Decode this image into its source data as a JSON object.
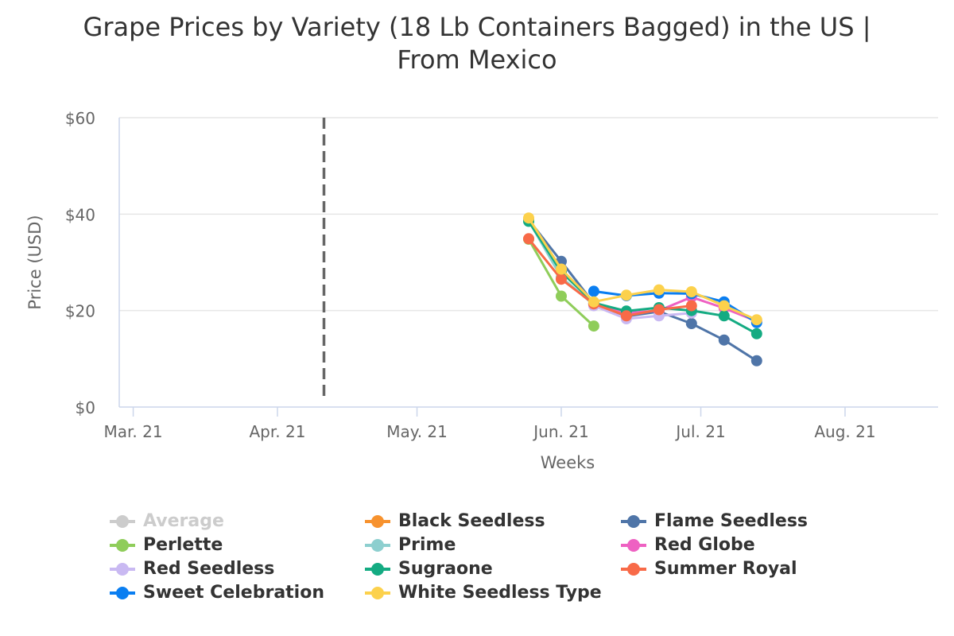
{
  "chart_data": {
    "type": "line",
    "title_lines": [
      "Grape Prices by Variety (18 Lb Containers Bagged) in the US |",
      "From Mexico"
    ],
    "xlabel": "Weeks",
    "ylabel": "Price (USD)",
    "x_tick_labels": [
      "Mar. 21",
      "Apr. 21",
      "May. 21",
      "Jun. 21",
      "Jul. 21",
      "Aug. 21"
    ],
    "x_tick_dates": [
      "2021-03-01",
      "2021-04-01",
      "2021-05-01",
      "2021-06-01",
      "2021-07-01",
      "2021-08-01"
    ],
    "xlim": [
      "2021-02-26",
      "2021-08-21"
    ],
    "y_tick_labels": [
      "$0",
      "$20",
      "$40",
      "$60"
    ],
    "y_tick_values": [
      0,
      20,
      40,
      60
    ],
    "ylim": [
      0,
      60
    ],
    "grid": "horizontal",
    "legend_position": "bottom",
    "plot_line": {
      "date": "2021-04-11",
      "style": "dashed",
      "color": "#666666"
    },
    "series": [
      {
        "name": "Average",
        "color": "#cccccc",
        "hidden": true,
        "points": []
      },
      {
        "name": "Black Seedless",
        "color": "#f7922e",
        "points": []
      },
      {
        "name": "Flame Seedless",
        "color": "#4f75a8",
        "points": [
          [
            "2021-05-25",
            38.8
          ],
          [
            "2021-06-01",
            30.2
          ],
          [
            "2021-06-08",
            21.5
          ],
          [
            "2021-06-15",
            18.8
          ],
          [
            "2021-06-22",
            19.8
          ],
          [
            "2021-06-29",
            17.3
          ],
          [
            "2021-07-06",
            13.9
          ],
          [
            "2021-07-13",
            9.6
          ]
        ]
      },
      {
        "name": "Perlette",
        "color": "#8fcd5a",
        "points": [
          [
            "2021-05-25",
            34.8
          ],
          [
            "2021-06-01",
            23.0
          ],
          [
            "2021-06-08",
            16.8
          ]
        ]
      },
      {
        "name": "Prime",
        "color": "#8dcfcf",
        "points": [
          [
            "2021-05-25",
            38.6
          ],
          [
            "2021-06-01",
            26.9
          ],
          [
            "2021-06-08",
            21.2
          ]
        ]
      },
      {
        "name": "Red Globe",
        "color": "#ee61c2",
        "points": [
          [
            "2021-06-08",
            21.3
          ],
          [
            "2021-06-15",
            19.5
          ],
          [
            "2021-06-22",
            20.0
          ],
          [
            "2021-06-29",
            22.8
          ],
          [
            "2021-07-06",
            20.5
          ],
          [
            "2021-07-13",
            17.8
          ]
        ]
      },
      {
        "name": "Red Seedless",
        "color": "#c9b9f2",
        "points": [
          [
            "2021-06-08",
            21.0
          ],
          [
            "2021-06-15",
            18.3
          ],
          [
            "2021-06-22",
            18.9
          ],
          [
            "2021-06-29",
            19.5
          ]
        ]
      },
      {
        "name": "Sugraone",
        "color": "#14ab82",
        "points": [
          [
            "2021-05-25",
            38.5
          ],
          [
            "2021-06-01",
            28.0
          ],
          [
            "2021-06-08",
            21.6
          ],
          [
            "2021-06-15",
            19.9
          ],
          [
            "2021-06-22",
            20.6
          ],
          [
            "2021-06-29",
            20.0
          ],
          [
            "2021-07-06",
            18.9
          ],
          [
            "2021-07-13",
            15.2
          ]
        ]
      },
      {
        "name": "Summer Royal",
        "color": "#f86a48",
        "points": [
          [
            "2021-05-25",
            34.9
          ],
          [
            "2021-06-01",
            26.5
          ],
          [
            "2021-06-08",
            21.4
          ],
          [
            "2021-06-15",
            18.9
          ],
          [
            "2021-06-22",
            20.2
          ],
          [
            "2021-06-29",
            21.0
          ]
        ]
      },
      {
        "name": "Sweet Celebration",
        "color": "#0a7ef1",
        "points": [
          [
            "2021-06-08",
            24.0
          ],
          [
            "2021-06-15",
            23.1
          ],
          [
            "2021-06-22",
            23.6
          ],
          [
            "2021-06-29",
            23.5
          ],
          [
            "2021-07-06",
            21.8
          ],
          [
            "2021-07-13",
            17.5
          ]
        ]
      },
      {
        "name": "White Seedless Type",
        "color": "#fcd14c",
        "points": [
          [
            "2021-05-25",
            39.2
          ],
          [
            "2021-06-01",
            28.6
          ],
          [
            "2021-06-08",
            21.8
          ],
          [
            "2021-06-15",
            23.2
          ],
          [
            "2021-06-22",
            24.3
          ],
          [
            "2021-06-29",
            23.9
          ],
          [
            "2021-07-06",
            21.0
          ],
          [
            "2021-07-13",
            18.1
          ]
        ]
      }
    ]
  }
}
